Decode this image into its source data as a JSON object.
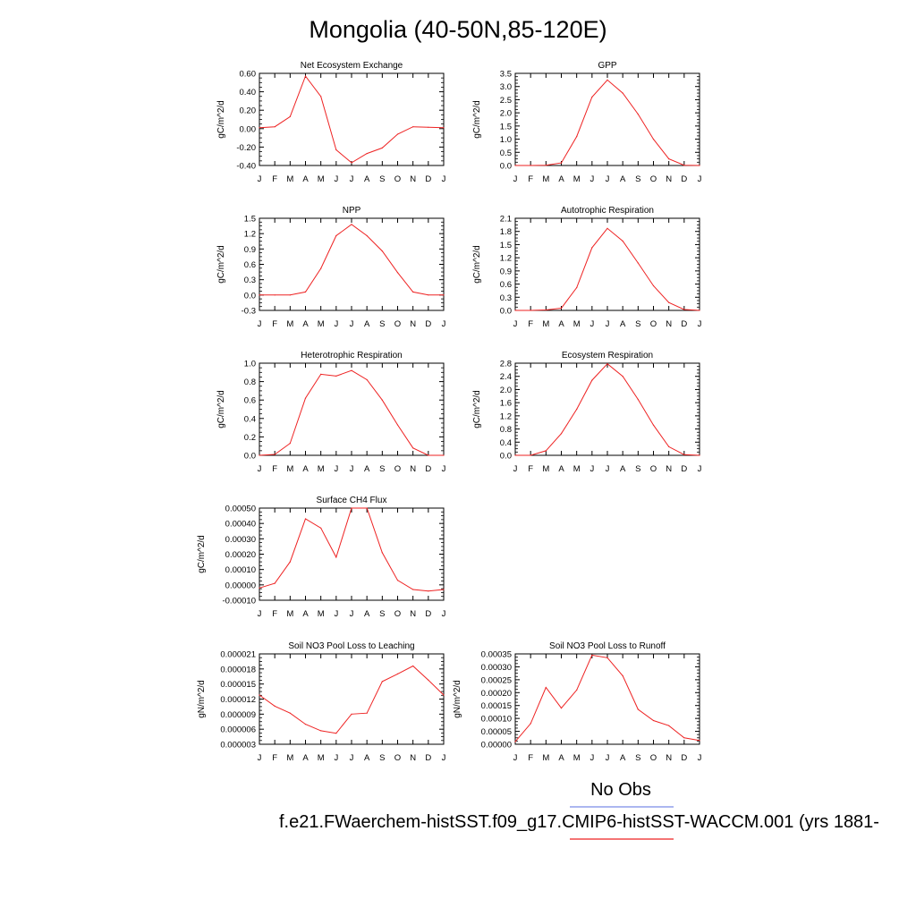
{
  "page": {
    "title": "Mongolia (40-50N,85-120E)",
    "legend": {
      "obs_label": "No Obs",
      "obs_color": "#7b8ce8",
      "case_label": "f.e21.FWaerchem-histSST.f09_g17.CMIP6-histSST-WACCM.001 (yrs 1881-",
      "case_color": "#ee2222"
    }
  },
  "chart_data": [
    {
      "type": "line",
      "title": "Net Ecosystem Exchange",
      "ylabel": "gC/m^2/d",
      "categories": [
        "J",
        "F",
        "M",
        "A",
        "M",
        "J",
        "J",
        "A",
        "S",
        "O",
        "N",
        "D",
        "J"
      ],
      "ylim": [
        -0.4,
        0.6
      ],
      "yticks": [
        "-0.40",
        "-0.20",
        "0.00",
        "0.20",
        "0.40",
        "0.60"
      ],
      "values": [
        0.01,
        0.02,
        0.13,
        0.57,
        0.35,
        -0.23,
        -0.37,
        -0.27,
        -0.21,
        -0.06,
        0.02,
        0.015,
        0.01
      ]
    },
    {
      "type": "line",
      "title": "GPP",
      "ylabel": "gC/m^2/d",
      "categories": [
        "J",
        "F",
        "M",
        "A",
        "M",
        "J",
        "J",
        "A",
        "S",
        "O",
        "N",
        "D",
        "J"
      ],
      "ylim": [
        0,
        3.5
      ],
      "yticks": [
        "0.0",
        "0.5",
        "1.0",
        "1.5",
        "2.0",
        "2.5",
        "3.0",
        "3.5"
      ],
      "values": [
        0,
        0,
        0.01,
        0.1,
        1.1,
        2.6,
        3.25,
        2.75,
        1.95,
        1.0,
        0.25,
        0.01,
        0
      ]
    },
    {
      "type": "line",
      "title": "NPP",
      "ylabel": "gC/m^2/d",
      "categories": [
        "J",
        "F",
        "M",
        "A",
        "M",
        "J",
        "J",
        "A",
        "S",
        "O",
        "N",
        "D",
        "J"
      ],
      "ylim": [
        -0.3,
        1.5
      ],
      "yticks": [
        "-0.3",
        "0.0",
        "0.3",
        "0.6",
        "0.9",
        "1.2",
        "1.5"
      ],
      "values": [
        0,
        0,
        0,
        0.06,
        0.52,
        1.16,
        1.38,
        1.16,
        0.86,
        0.44,
        0.06,
        0,
        0
      ]
    },
    {
      "type": "line",
      "title": "Autotrophic Respiration",
      "ylabel": "gC/m^2/d",
      "categories": [
        "J",
        "F",
        "M",
        "A",
        "M",
        "J",
        "J",
        "A",
        "S",
        "O",
        "N",
        "D",
        "J"
      ],
      "ylim": [
        0,
        2.1
      ],
      "yticks": [
        "0.0",
        "0.3",
        "0.6",
        "0.9",
        "1.2",
        "1.5",
        "1.8",
        "2.1"
      ],
      "values": [
        0,
        0,
        0.01,
        0.05,
        0.52,
        1.43,
        1.87,
        1.58,
        1.08,
        0.56,
        0.18,
        0.02,
        0
      ]
    },
    {
      "type": "line",
      "title": "Heterotrophic Respiration",
      "ylabel": "gC/m^2/d",
      "categories": [
        "J",
        "F",
        "M",
        "A",
        "M",
        "J",
        "J",
        "A",
        "S",
        "O",
        "N",
        "D",
        "J"
      ],
      "ylim": [
        0,
        1.0
      ],
      "yticks": [
        "0.0",
        "0.2",
        "0.4",
        "0.6",
        "0.8",
        "1.0"
      ],
      "values": [
        0,
        0.01,
        0.13,
        0.62,
        0.88,
        0.86,
        0.92,
        0.82,
        0.6,
        0.33,
        0.08,
        0,
        0
      ]
    },
    {
      "type": "line",
      "title": "Ecosystem Respiration",
      "ylabel": "gC/m^2/d",
      "categories": [
        "J",
        "F",
        "M",
        "A",
        "M",
        "J",
        "J",
        "A",
        "S",
        "O",
        "N",
        "D",
        "J"
      ],
      "ylim": [
        0,
        2.8
      ],
      "yticks": [
        "0.0",
        "0.4",
        "0.8",
        "1.2",
        "1.6",
        "2.0",
        "2.4",
        "2.8"
      ],
      "values": [
        0,
        0,
        0.14,
        0.66,
        1.4,
        2.28,
        2.78,
        2.4,
        1.7,
        0.92,
        0.26,
        0.02,
        0
      ]
    },
    {
      "type": "line",
      "title": "Surface CH4 Flux",
      "ylabel": "gC/m^2/d",
      "categories": [
        "J",
        "F",
        "M",
        "A",
        "M",
        "J",
        "J",
        "A",
        "S",
        "O",
        "N",
        "D",
        "J"
      ],
      "ylim": [
        -0.0001,
        0.0005
      ],
      "yticks": [
        "-0.00010",
        "0.00000",
        "0.00010",
        "0.00020",
        "0.00030",
        "0.00040",
        "0.00050"
      ],
      "values": [
        -2e-05,
        1e-05,
        0.00015,
        0.00043,
        0.00037,
        0.00018,
        0.0005,
        0.0005,
        0.00021,
        3e-05,
        -3e-05,
        -4e-05,
        -3e-05
      ]
    },
    {
      "type": "line",
      "title": "Soil NO3 Pool Loss to Leaching",
      "ylabel": "gN/m^2/d",
      "categories": [
        "J",
        "F",
        "M",
        "A",
        "M",
        "J",
        "J",
        "A",
        "S",
        "O",
        "N",
        "D",
        "J"
      ],
      "ylim": [
        3e-06,
        2.1e-05
      ],
      "yticks": [
        "0.000003",
        "0.000006",
        "0.000009",
        "0.000012",
        "0.000015",
        "0.000018",
        "0.000021"
      ],
      "values": [
        1.28e-05,
        1.06e-05,
        9.2e-06,
        7e-06,
        5.7e-06,
        5.2e-06,
        9e-06,
        9.2e-06,
        1.55e-05,
        1.7e-05,
        1.86e-05,
        1.58e-05,
        1.28e-05
      ]
    },
    {
      "type": "line",
      "title": "Soil NO3 Pool Loss to Runoff",
      "ylabel": "gN/m^2/d",
      "categories": [
        "J",
        "F",
        "M",
        "A",
        "M",
        "J",
        "J",
        "A",
        "S",
        "O",
        "N",
        "D",
        "J"
      ],
      "ylim": [
        0,
        0.00035
      ],
      "yticks": [
        "0.00000",
        "0.00005",
        "0.00010",
        "0.00015",
        "0.00020",
        "0.00025",
        "0.00030",
        "0.00035"
      ],
      "values": [
        1e-05,
        8e-05,
        0.00022,
        0.00014,
        0.00021,
        0.000345,
        0.000335,
        0.000265,
        0.000135,
        9.2e-05,
        7.2e-05,
        2.5e-05,
        1.5e-05
      ]
    }
  ]
}
